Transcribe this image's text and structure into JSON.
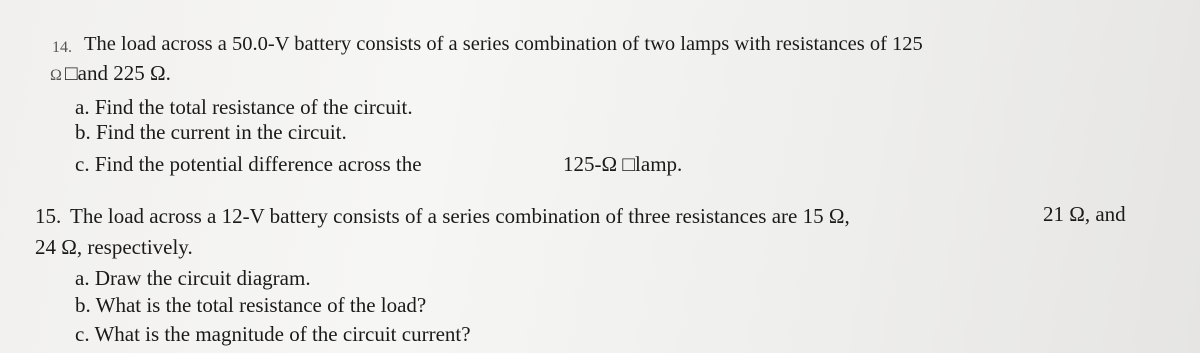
{
  "problems": [
    {
      "number": "14.",
      "statement": [
        "The load across a 50.0-V battery consists of a series combination of two lamps with resistances of 125",
        "Ω",
        "□and 225 Ω."
      ],
      "parts": [
        "a. Find the total resistance of the circuit.",
        "b. Find the current in the circuit.",
        "c. Find the potential difference across the",
        "125-Ω □lamp."
      ]
    },
    {
      "number": "15.",
      "statement": [
        "The load across a 12-V battery consists of a series combination of three resistances are 15 Ω,",
        "21 Ω, and",
        "24 Ω, respectively."
      ],
      "parts": [
        "a. Draw the circuit diagram.",
        "b. What is the total resistance of the load?",
        "c. What is the magnitude of the circuit current?"
      ]
    }
  ]
}
